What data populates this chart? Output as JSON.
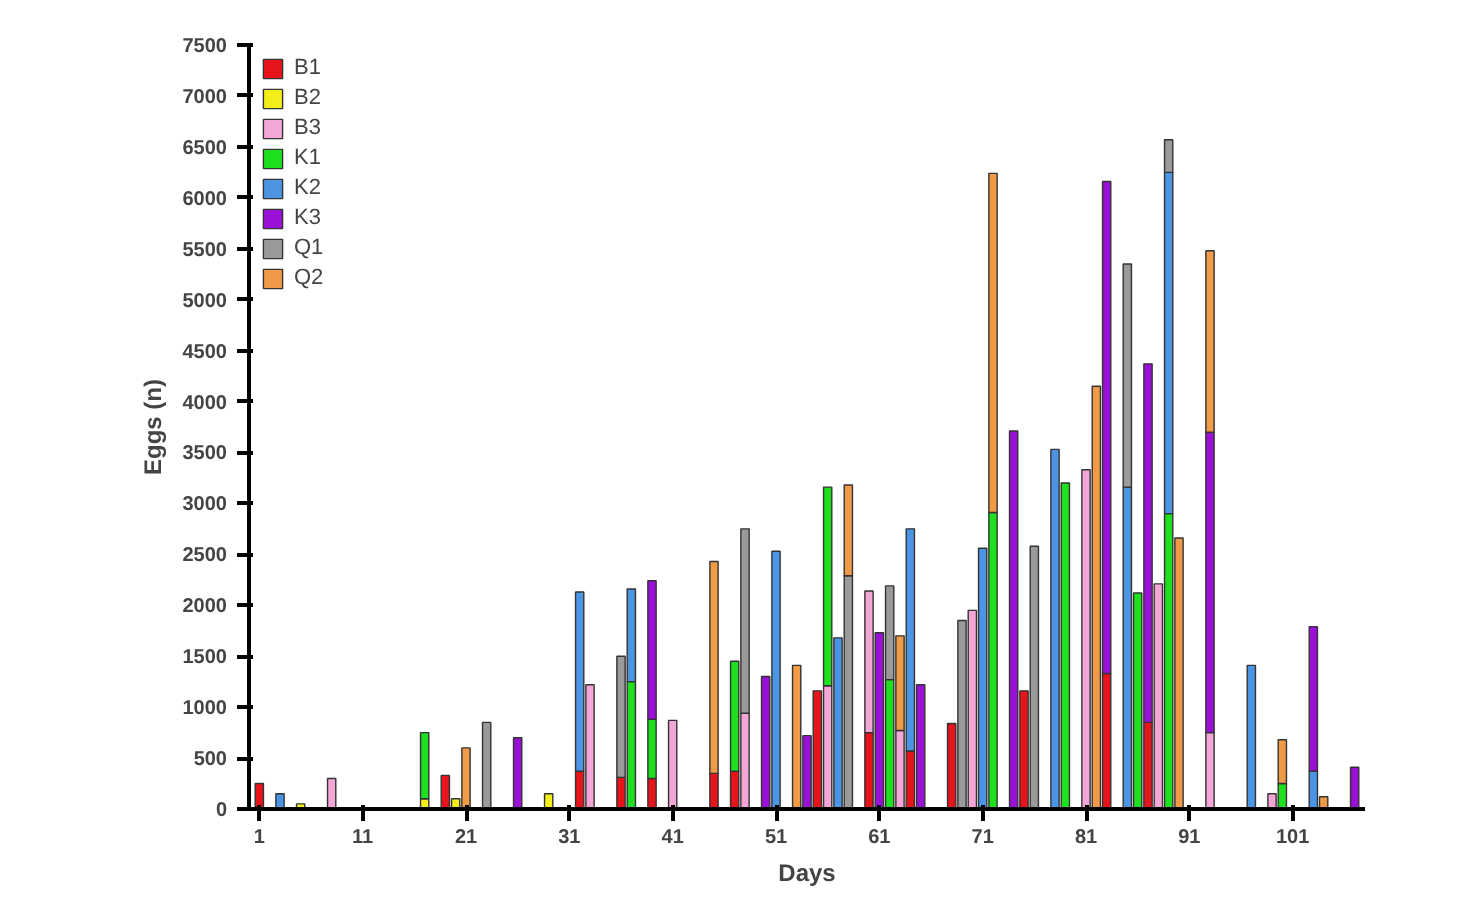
{
  "chart_data": {
    "type": "bar",
    "stacked": true,
    "xlabel": "Days",
    "ylabel": "Eggs (n)",
    "xlim": [
      0,
      108
    ],
    "ylim": [
      0,
      7500
    ],
    "xticks": [
      1,
      11,
      21,
      31,
      41,
      51,
      61,
      71,
      81,
      91,
      101
    ],
    "yticks": [
      0,
      500,
      1000,
      1500,
      2000,
      2500,
      3000,
      3500,
      4000,
      4500,
      5000,
      5500,
      6000,
      6500,
      7000,
      7500
    ],
    "grid": false,
    "legend": "top left",
    "x": [
      1,
      3,
      5,
      8,
      17,
      19,
      20,
      21,
      23,
      26,
      29,
      32,
      33,
      36,
      37,
      39,
      41,
      45,
      47,
      48,
      50,
      51,
      53,
      54,
      55,
      56,
      57,
      58,
      60,
      61,
      62,
      63,
      64,
      65,
      68,
      69,
      70,
      71,
      72,
      74,
      75,
      76,
      78,
      79,
      81,
      82,
      83,
      85,
      86,
      87,
      88,
      89,
      90,
      93,
      97,
      99,
      100,
      103,
      104,
      107
    ],
    "series": [
      {
        "name": "B1",
        "color": "#e8141b",
        "values": [
          250,
          null,
          null,
          null,
          null,
          330,
          null,
          null,
          null,
          null,
          null,
          370,
          null,
          310,
          null,
          300,
          null,
          350,
          370,
          null,
          null,
          null,
          null,
          null,
          1160,
          null,
          null,
          null,
          750,
          null,
          null,
          null,
          570,
          null,
          840,
          null,
          null,
          null,
          null,
          null,
          1160,
          null,
          null,
          null,
          null,
          null,
          1330,
          null,
          null,
          850,
          null,
          null,
          null,
          null,
          null,
          null,
          null,
          null,
          null,
          null
        ]
      },
      {
        "name": "B2",
        "color": "#f2ee1a",
        "values": [
          null,
          null,
          50,
          null,
          100,
          null,
          100,
          null,
          null,
          null,
          150,
          null,
          null,
          null,
          null,
          null,
          null,
          null,
          null,
          null,
          null,
          null,
          null,
          null,
          null,
          null,
          null,
          null,
          null,
          null,
          null,
          null,
          null,
          null,
          null,
          null,
          null,
          null,
          null,
          null,
          null,
          null,
          null,
          null,
          null,
          null,
          null,
          null,
          null,
          null,
          null,
          null,
          null,
          null,
          null,
          null,
          null,
          null,
          null,
          null
        ]
      },
      {
        "name": "B3",
        "color": "#f4a6d7",
        "values": [
          null,
          null,
          null,
          300,
          null,
          null,
          null,
          null,
          null,
          null,
          null,
          null,
          1220,
          null,
          null,
          null,
          870,
          null,
          null,
          940,
          null,
          null,
          null,
          null,
          null,
          1210,
          null,
          null,
          1390,
          null,
          null,
          770,
          null,
          null,
          null,
          null,
          1950,
          null,
          null,
          null,
          null,
          null,
          null,
          null,
          3330,
          null,
          null,
          null,
          null,
          null,
          2210,
          null,
          null,
          750,
          null,
          150,
          null,
          null,
          null,
          null
        ]
      },
      {
        "name": "K1",
        "color": "#1fe01f",
        "values": [
          null,
          null,
          null,
          null,
          650,
          null,
          null,
          null,
          null,
          null,
          null,
          null,
          null,
          null,
          1250,
          580,
          null,
          null,
          1080,
          null,
          null,
          null,
          null,
          null,
          null,
          1950,
          null,
          null,
          null,
          null,
          1270,
          null,
          null,
          null,
          null,
          null,
          null,
          null,
          2910,
          null,
          null,
          null,
          null,
          3200,
          null,
          null,
          null,
          null,
          2120,
          null,
          null,
          2900,
          null,
          null,
          null,
          null,
          250,
          null,
          null,
          null
        ]
      },
      {
        "name": "K2",
        "color": "#4c94e4",
        "values": [
          null,
          150,
          null,
          null,
          null,
          null,
          null,
          null,
          null,
          null,
          null,
          1760,
          null,
          null,
          910,
          null,
          null,
          null,
          null,
          null,
          null,
          2530,
          null,
          null,
          null,
          null,
          1680,
          null,
          null,
          null,
          null,
          null,
          2180,
          null,
          null,
          null,
          null,
          2560,
          null,
          null,
          null,
          null,
          3530,
          null,
          null,
          null,
          null,
          3160,
          null,
          null,
          null,
          3350,
          null,
          null,
          1410,
          null,
          null,
          370,
          null,
          null
        ]
      },
      {
        "name": "K3",
        "color": "#9b10d6",
        "values": [
          null,
          null,
          null,
          null,
          null,
          null,
          null,
          null,
          null,
          700,
          null,
          null,
          null,
          null,
          null,
          1360,
          null,
          null,
          null,
          null,
          1300,
          null,
          null,
          720,
          null,
          null,
          null,
          null,
          null,
          1730,
          null,
          null,
          null,
          1220,
          null,
          null,
          null,
          null,
          null,
          3710,
          null,
          null,
          null,
          null,
          null,
          null,
          4830,
          null,
          null,
          3520,
          null,
          null,
          null,
          2950,
          null,
          null,
          null,
          1420,
          null,
          410
        ]
      },
      {
        "name": "Q1",
        "color": "#9a9a9a",
        "values": [
          null,
          null,
          null,
          null,
          null,
          null,
          null,
          null,
          850,
          null,
          null,
          null,
          null,
          1190,
          null,
          null,
          null,
          null,
          null,
          1810,
          null,
          null,
          null,
          null,
          null,
          null,
          null,
          2290,
          null,
          null,
          920,
          null,
          null,
          null,
          null,
          1850,
          null,
          null,
          null,
          null,
          null,
          2580,
          null,
          null,
          null,
          null,
          null,
          2190,
          null,
          null,
          null,
          320,
          null,
          null,
          null,
          null,
          null,
          null,
          null,
          null
        ]
      },
      {
        "name": "Q2",
        "color": "#f09a48",
        "values": [
          null,
          null,
          null,
          null,
          null,
          null,
          null,
          600,
          null,
          null,
          null,
          null,
          null,
          null,
          null,
          null,
          null,
          2080,
          null,
          null,
          null,
          null,
          1410,
          null,
          null,
          null,
          null,
          890,
          null,
          null,
          null,
          930,
          null,
          null,
          null,
          null,
          null,
          null,
          3330,
          null,
          null,
          null,
          null,
          null,
          null,
          4150,
          null,
          null,
          null,
          null,
          null,
          null,
          2660,
          1780,
          null,
          null,
          430,
          null,
          120,
          null
        ]
      }
    ]
  }
}
